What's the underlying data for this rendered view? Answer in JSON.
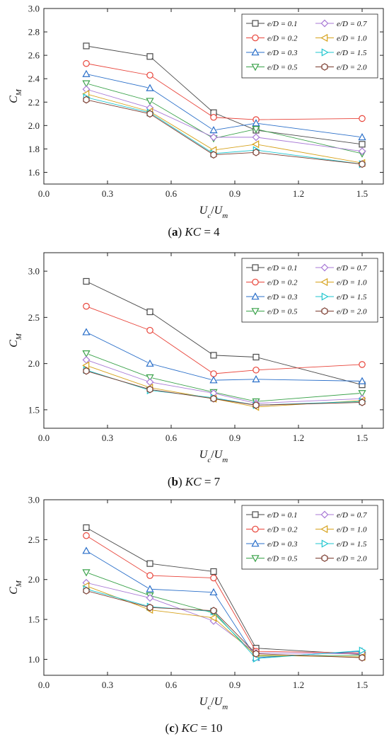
{
  "chart_data": [
    {
      "type": "line",
      "caption": {
        "prefix": "(",
        "letter": "a",
        "suffix": ")",
        "kc": "KC",
        "eq": " = 4"
      },
      "xlabel": {
        "main": "U",
        "sub": "c",
        "sep": "/",
        "main2": "U",
        "sub2": "m"
      },
      "ylabel": {
        "main": "C",
        "sub": "M"
      },
      "xlim": [
        0,
        1.6
      ],
      "ylim": [
        1.5,
        3.0
      ],
      "xticks": [
        "0.0",
        "0.3",
        "0.6",
        "0.9",
        "1.2",
        "1.5"
      ],
      "yticks": [
        "1.6",
        "1.8",
        "2.0",
        "2.2",
        "2.4",
        "2.6",
        "2.8",
        "3.0"
      ],
      "x": [
        0.2,
        0.5,
        0.8,
        1.0,
        1.5
      ],
      "series": [
        {
          "name": "e/D = 0.1",
          "values": [
            2.68,
            2.59,
            2.11,
            1.96,
            1.84
          ]
        },
        {
          "name": "e/D = 0.2",
          "values": [
            2.53,
            2.43,
            2.07,
            2.05,
            2.06
          ]
        },
        {
          "name": "e/D = 0.3",
          "values": [
            2.44,
            2.32,
            1.96,
            2.02,
            1.9
          ]
        },
        {
          "name": "e/D = 0.5",
          "values": [
            2.36,
            2.21,
            1.89,
            1.97,
            1.76
          ]
        },
        {
          "name": "e/D = 0.7",
          "values": [
            2.31,
            2.15,
            1.9,
            1.9,
            1.78
          ]
        },
        {
          "name": "e/D = 1.0",
          "values": [
            2.27,
            2.12,
            1.79,
            1.84,
            1.68
          ]
        },
        {
          "name": "e/D = 1.5",
          "values": [
            2.24,
            2.11,
            1.76,
            1.79,
            1.67
          ]
        },
        {
          "name": "e/D = 2.0",
          "values": [
            2.22,
            2.1,
            1.75,
            1.77,
            1.67
          ]
        }
      ]
    },
    {
      "type": "line",
      "caption": {
        "prefix": "(",
        "letter": "b",
        "suffix": ")",
        "kc": "KC",
        "eq": " = 7"
      },
      "xlabel": {
        "main": "U",
        "sub": "c",
        "sep": "/",
        "main2": "U",
        "sub2": "m"
      },
      "ylabel": {
        "main": "C",
        "sub": "M"
      },
      "xlim": [
        0,
        1.6
      ],
      "ylim": [
        1.3,
        3.2
      ],
      "xticks": [
        "0.0",
        "0.3",
        "0.6",
        "0.9",
        "1.2",
        "1.5"
      ],
      "yticks": [
        "1.5",
        "2.0",
        "2.5",
        "3.0"
      ],
      "x": [
        0.2,
        0.5,
        0.8,
        1.0,
        1.5
      ],
      "series": [
        {
          "name": "e/D = 0.1",
          "values": [
            2.89,
            2.56,
            2.09,
            2.07,
            1.77
          ]
        },
        {
          "name": "e/D = 0.2",
          "values": [
            2.62,
            2.36,
            1.89,
            1.93,
            1.99
          ]
        },
        {
          "name": "e/D = 0.3",
          "values": [
            2.34,
            2.0,
            1.82,
            1.83,
            1.81
          ]
        },
        {
          "name": "e/D = 0.5",
          "values": [
            2.11,
            1.85,
            1.69,
            1.59,
            1.68
          ]
        },
        {
          "name": "e/D = 0.7",
          "values": [
            2.04,
            1.8,
            1.68,
            1.57,
            1.62
          ]
        },
        {
          "name": "e/D = 1.0",
          "values": [
            1.98,
            1.74,
            1.62,
            1.53,
            1.6
          ]
        },
        {
          "name": "e/D = 1.5",
          "values": [
            1.93,
            1.71,
            1.63,
            1.55,
            1.59
          ]
        },
        {
          "name": "e/D = 2.0",
          "values": [
            1.92,
            1.72,
            1.62,
            1.55,
            1.58
          ]
        }
      ]
    },
    {
      "type": "line",
      "caption": {
        "prefix": "(",
        "letter": "c",
        "suffix": ")",
        "kc": "KC",
        "eq": " = 10"
      },
      "xlabel": {
        "main": "U",
        "sub": "c",
        "sep": "/",
        "main2": "U",
        "sub2": "m"
      },
      "ylabel": {
        "main": "C",
        "sub": "M"
      },
      "xlim": [
        0,
        1.6
      ],
      "ylim": [
        0.8,
        3.0
      ],
      "xticks": [
        "0.0",
        "0.3",
        "0.6",
        "0.9",
        "1.2",
        "1.5"
      ],
      "yticks": [
        "1.0",
        "1.5",
        "2.0",
        "2.5",
        "3.0"
      ],
      "x": [
        0.2,
        0.5,
        0.8,
        1.0,
        1.5
      ],
      "series": [
        {
          "name": "e/D = 0.1",
          "values": [
            2.65,
            2.2,
            2.1,
            1.14,
            1.06
          ]
        },
        {
          "name": "e/D = 0.2",
          "values": [
            2.55,
            2.05,
            2.02,
            1.1,
            1.08
          ]
        },
        {
          "name": "e/D = 0.3",
          "values": [
            2.36,
            1.88,
            1.84,
            1.02,
            1.1
          ]
        },
        {
          "name": "e/D = 0.5",
          "values": [
            2.09,
            1.8,
            1.58,
            1.04,
            1.05
          ]
        },
        {
          "name": "e/D = 0.7",
          "values": [
            1.96,
            1.77,
            1.48,
            1.08,
            1.07
          ]
        },
        {
          "name": "e/D = 1.0",
          "values": [
            1.92,
            1.62,
            1.52,
            1.05,
            1.03
          ]
        },
        {
          "name": "e/D = 1.5",
          "values": [
            1.88,
            1.66,
            1.6,
            1.01,
            1.11
          ]
        },
        {
          "name": "e/D = 2.0",
          "values": [
            1.86,
            1.65,
            1.61,
            1.07,
            1.02
          ]
        }
      ]
    }
  ],
  "series_style": [
    {
      "color": "#4a4a4a",
      "marker": "square"
    },
    {
      "color": "#e8443a",
      "marker": "circle"
    },
    {
      "color": "#2a6fc9",
      "marker": "triangle-up"
    },
    {
      "color": "#3aa24a",
      "marker": "triangle-down"
    },
    {
      "color": "#a97ad6",
      "marker": "diamond"
    },
    {
      "color": "#d6a21c",
      "marker": "triangle-left"
    },
    {
      "color": "#1fc6cf",
      "marker": "triangle-right"
    },
    {
      "color": "#7a3b2e",
      "marker": "hexagon"
    }
  ]
}
